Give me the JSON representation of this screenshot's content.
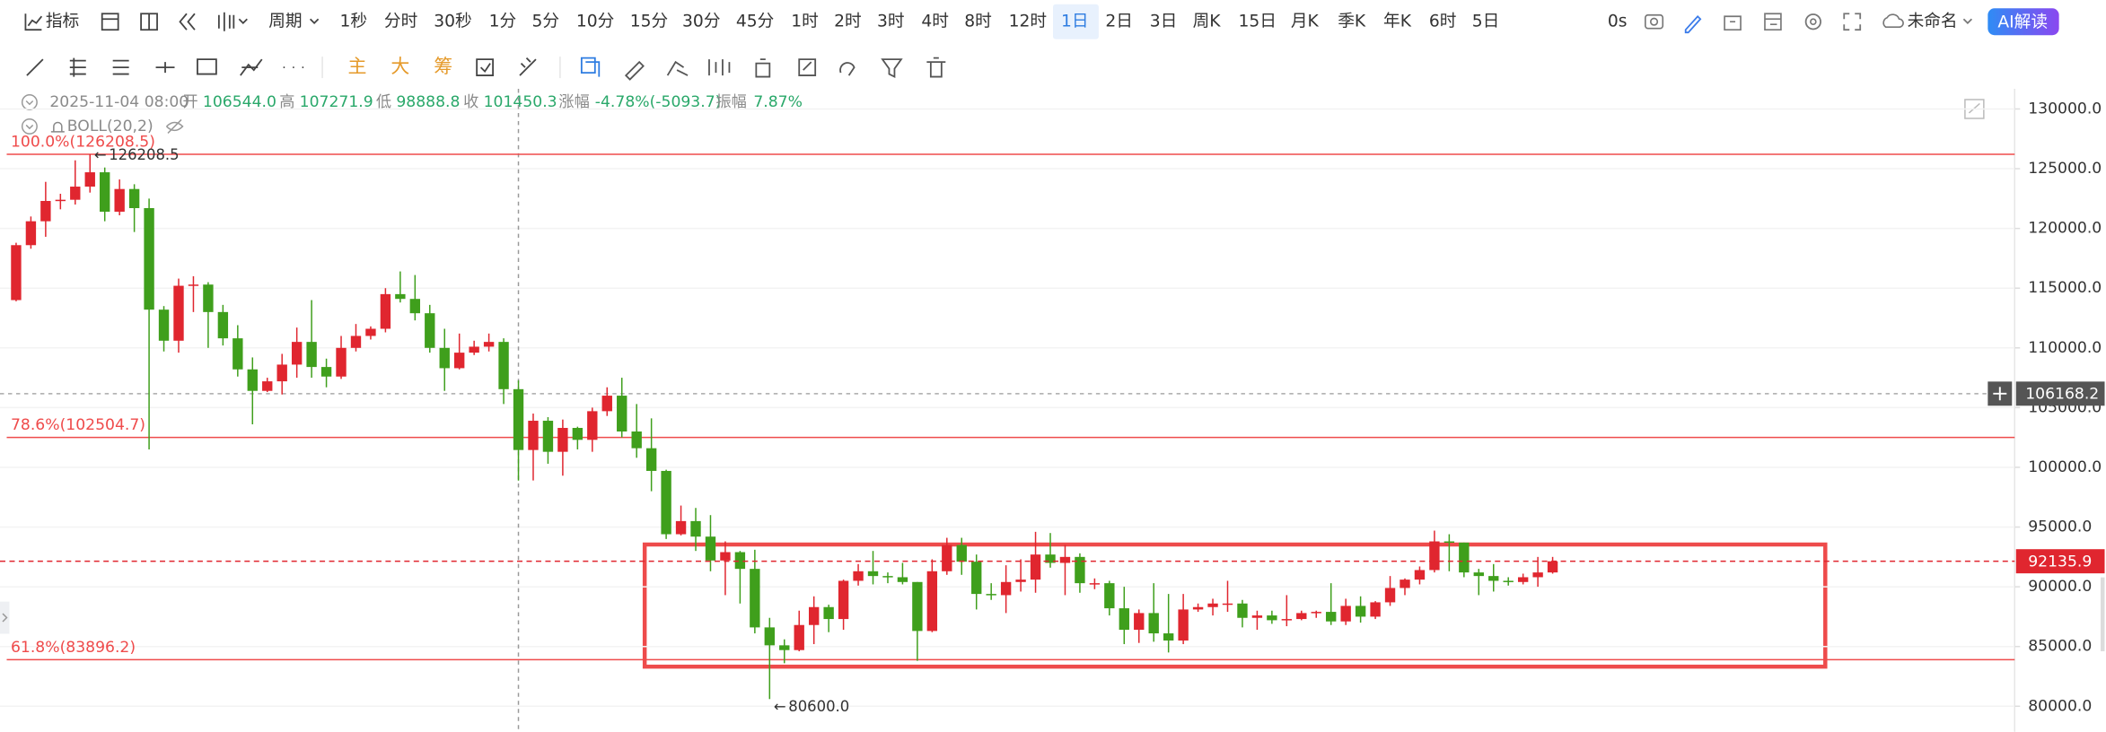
{
  "toolbar": {
    "indicator_button": "指标",
    "period_menu": "周期",
    "periods": [
      {
        "label": "1秒"
      },
      {
        "label": "分时"
      },
      {
        "label": "30秒"
      },
      {
        "label": "1分"
      },
      {
        "label": "5分"
      },
      {
        "label": "10分"
      },
      {
        "label": "15分"
      },
      {
        "label": "30分"
      },
      {
        "label": "45分"
      },
      {
        "label": "1时"
      },
      {
        "label": "2时"
      },
      {
        "label": "3时"
      },
      {
        "label": "4时"
      },
      {
        "label": "8时"
      },
      {
        "label": "12时"
      },
      {
        "label": "1日",
        "active": true
      },
      {
        "label": "2日"
      },
      {
        "label": "3日"
      },
      {
        "label": "周K"
      },
      {
        "label": "15日"
      },
      {
        "label": "月K"
      },
      {
        "label": "季K"
      },
      {
        "label": "年K"
      },
      {
        "label": "6时"
      },
      {
        "label": "5日"
      }
    ],
    "timer": "0s",
    "doc_name": "未命名",
    "ai_button": "AI解读"
  },
  "drawing_toolbar": {
    "chips": [
      "主",
      "大",
      "筹"
    ]
  },
  "chart_data": {
    "type": "candlestick",
    "up_color": "#e0262f",
    "down_color": "#3f9f1c",
    "open": [
      114000,
      118600,
      120600,
      122300,
      122400,
      123500,
      124700,
      121400,
      123300,
      121700,
      113200,
      110600,
      115200,
      115300,
      113000,
      110800,
      108200,
      106400,
      107200,
      108600,
      110500,
      108400,
      107600,
      110000,
      111000,
      111600,
      114500,
      114100,
      112900,
      110000,
      108300,
      109600,
      110100,
      110500,
      106544.0,
      101450.3,
      103900,
      101300,
      103300,
      102300,
      104700,
      106000,
      103000,
      101600,
      99700,
      94400,
      95500,
      94200,
      92200,
      92900,
      91500,
      86600,
      85100,
      84700,
      86800,
      88300,
      87300,
      90500,
      91300,
      90900,
      90800,
      90400,
      86300,
      91300,
      93500,
      92100,
      89400,
      89300,
      90400,
      90600,
      92700,
      92000,
      92500,
      90300,
      90300,
      88200,
      86400,
      87800,
      86100,
      85500,
      88100,
      88300,
      88600,
      88600,
      87400,
      87600,
      87200,
      87300,
      87800,
      87900,
      87100,
      88400,
      87500,
      88700,
      89900,
      90600,
      91400,
      93800,
      93700,
      91200,
      90900,
      90500,
      90400,
      90800,
      91200
    ],
    "high": [
      118800,
      121000,
      123900,
      122900,
      125700,
      126208.5,
      125100,
      124100,
      123700,
      122500,
      113500,
      115800,
      116000,
      115500,
      113600,
      111900,
      109200,
      107500,
      109500,
      111700,
      114000,
      109100,
      111000,
      112000,
      111800,
      115000,
      116400,
      116100,
      113600,
      111600,
      111200,
      110600,
      111200,
      110800,
      107271.9,
      104500,
      104200,
      104000,
      103400,
      105000,
      106700,
      107500,
      105300,
      104100,
      99800,
      96800,
      96600,
      96000,
      93800,
      93000,
      93100,
      87400,
      85600,
      88000,
      89200,
      88500,
      90600,
      91900,
      93000,
      91200,
      92000,
      90400,
      92300,
      94100,
      94100,
      92700,
      90300,
      91800,
      92300,
      94600,
      94500,
      93500,
      92800,
      90700,
      90500,
      90000,
      88100,
      90300,
      89400,
      89400,
      88600,
      89000,
      90500,
      88900,
      88000,
      88000,
      89300,
      88000,
      88000,
      90300,
      89000,
      89200,
      88800,
      90900,
      90700,
      91700,
      94700,
      94400,
      93700,
      91500,
      91900,
      90800,
      91100,
      92500,
      92500
    ],
    "low": [
      113900,
      118300,
      119300,
      121600,
      122000,
      123000,
      120600,
      121100,
      119700,
      101500,
      109700,
      109600,
      113000,
      110000,
      110200,
      107600,
      103600,
      106300,
      106100,
      107500,
      107500,
      106700,
      107400,
      109700,
      110700,
      111300,
      113800,
      112300,
      109600,
      106400,
      108200,
      109400,
      109700,
      105300,
      98888.8,
      98900,
      100300,
      99300,
      101500,
      101300,
      104300,
      102500,
      100800,
      98000,
      94000,
      94300,
      93000,
      91300,
      89300,
      88600,
      86100,
      80600,
      83600,
      84600,
      85200,
      86200,
      86400,
      90100,
      90200,
      90300,
      90200,
      83800,
      86200,
      91000,
      91000,
      88100,
      88900,
      87800,
      89600,
      89500,
      91600,
      89300,
      89500,
      89800,
      87600,
      85200,
      85300,
      85400,
      84500,
      85200,
      87900,
      87600,
      87900,
      86600,
      86400,
      86900,
      86700,
      87200,
      87400,
      86800,
      86800,
      87000,
      87300,
      88400,
      89300,
      90200,
      91200,
      91300,
      90800,
      89300,
      89600,
      90100,
      90200,
      90000,
      91100
    ],
    "close": [
      118600,
      120600,
      122300,
      122400,
      123500,
      124700,
      121400,
      123300,
      121700,
      113200,
      110600,
      115200,
      115300,
      113000,
      110800,
      108200,
      106400,
      107200,
      108600,
      110500,
      108400,
      107600,
      110000,
      111000,
      111600,
      114500,
      114100,
      112900,
      110000,
      108300,
      109600,
      110100,
      110500,
      106544.0,
      101450.3,
      103900,
      101300,
      103300,
      102300,
      104700,
      106000,
      103000,
      101600,
      99700,
      94400,
      95500,
      94200,
      92200,
      92900,
      91500,
      86600,
      85100,
      84700,
      86800,
      88300,
      87300,
      90500,
      91300,
      90900,
      90800,
      90400,
      86300,
      91300,
      93500,
      92100,
      89400,
      89300,
      90400,
      90600,
      92700,
      92000,
      92500,
      90300,
      90300,
      88200,
      86400,
      87800,
      86100,
      85500,
      88100,
      88300,
      88600,
      88600,
      87400,
      87600,
      87200,
      87300,
      87800,
      87900,
      87100,
      88400,
      87500,
      88700,
      89900,
      90600,
      91400,
      93800,
      93700,
      91200,
      90900,
      90500,
      90400,
      90800,
      91200,
      92135.9
    ],
    "ylim": [
      77865,
      131685
    ],
    "yticks": [
      {
        "value": 80000,
        "label": "80000.0"
      },
      {
        "value": 85000,
        "label": "85000.0"
      },
      {
        "value": 90000,
        "label": "90000.0"
      },
      {
        "value": 95000,
        "label": "95000.0"
      },
      {
        "value": 100000,
        "label": "100000.0"
      },
      {
        "value": 105000,
        "label": "105000.0"
      },
      {
        "value": 110000,
        "label": "110000.0"
      },
      {
        "value": 115000,
        "label": "115000.0"
      },
      {
        "value": 120000,
        "label": "120000.0"
      },
      {
        "value": 125000,
        "label": "125000.0"
      },
      {
        "value": 130000,
        "label": "130000.0"
      }
    ],
    "grid": true,
    "fib_levels": [
      {
        "value": 126208.5,
        "label": "100.0%(126208.5)"
      },
      {
        "value": 102504.7,
        "label": "78.6%(102504.7)"
      },
      {
        "value": 83896.2,
        "label": "61.8%(83896.2)"
      }
    ],
    "last_price": 92135.9,
    "crosshair_price": 106168.2,
    "crosshair_date": "2025-11-04 08:00",
    "ohlc_info": [
      {
        "name": "开",
        "value": "106544.0"
      },
      {
        "name": "高",
        "value": "107271.9"
      },
      {
        "name": "低",
        "value": "98888.8"
      },
      {
        "name": "收",
        "value": "101450.3"
      },
      {
        "name": "涨幅",
        "value": "-4.78%(-5093.7)"
      },
      {
        "name": "振幅",
        "value": "7.87%"
      }
    ],
    "indicator": "BOLL(20,2)",
    "annotations": [
      "126208.5",
      "80600.0"
    ]
  }
}
